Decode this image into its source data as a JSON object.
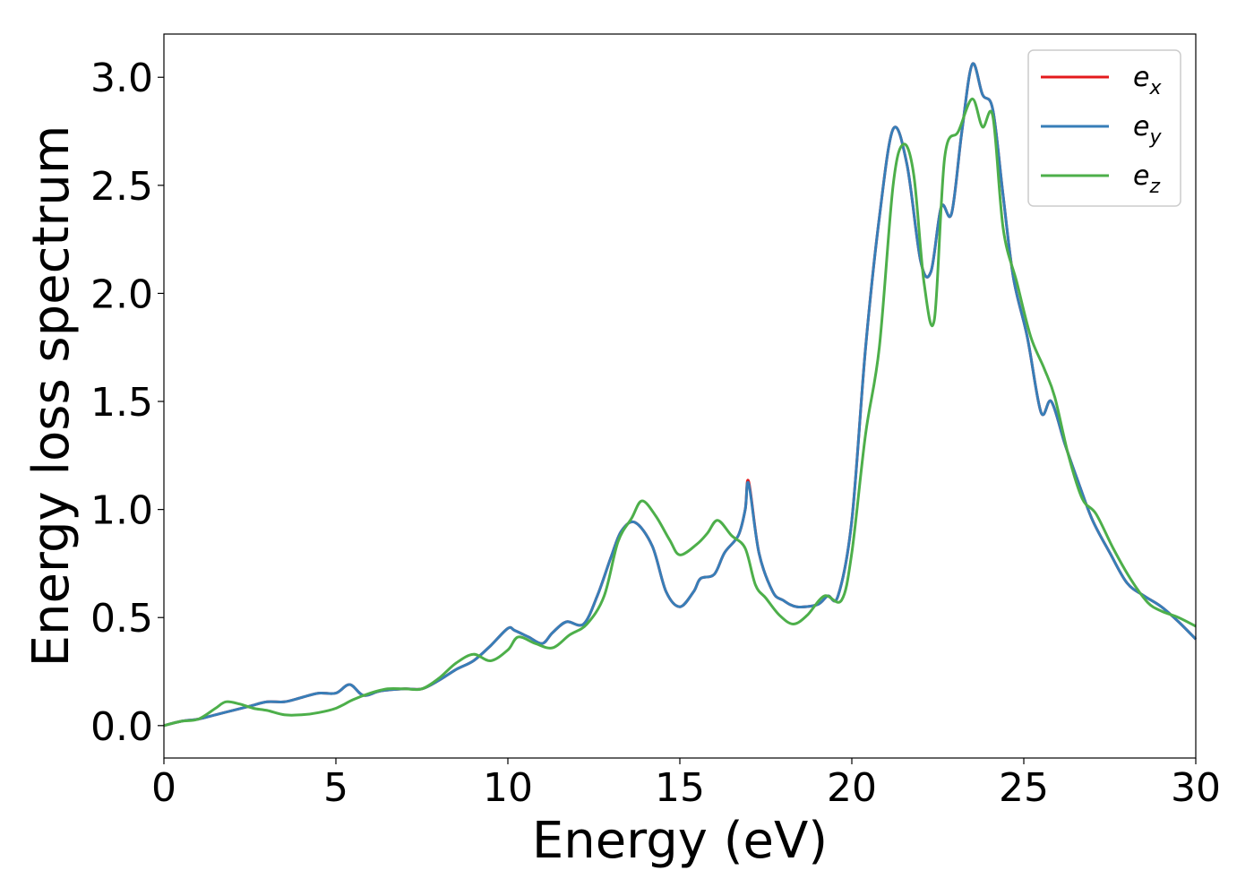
{
  "chart_data": {
    "type": "line",
    "title": "",
    "xlabel": "Energy (eV)",
    "ylabel": "Energy loss spectrum",
    "xlim": [
      0,
      30
    ],
    "ylim": [
      -0.15,
      3.2
    ],
    "xticks": [
      0,
      5,
      10,
      15,
      20,
      25,
      30
    ],
    "xtick_labels": [
      "0",
      "5",
      "10",
      "15",
      "20",
      "25",
      "30"
    ],
    "yticks": [
      0.0,
      0.5,
      1.0,
      1.5,
      2.0,
      2.5,
      3.0
    ],
    "ytick_labels": [
      "0.0",
      "0.5",
      "1.0",
      "1.5",
      "2.0",
      "2.5",
      "3.0"
    ],
    "grid": false,
    "legend_position": "top-right",
    "series": [
      {
        "name": "e_x",
        "label_base": "e",
        "label_sub": "x",
        "color": "#e41a1c",
        "x": [
          0,
          0.5,
          1,
          1.5,
          2,
          2.5,
          3,
          3.5,
          4,
          4.5,
          5,
          5.4,
          5.8,
          6.3,
          7,
          7.5,
          8,
          8.5,
          9,
          9.5,
          10,
          10.2,
          10.6,
          11,
          11.3,
          11.7,
          12.2,
          12.6,
          13,
          13.3,
          13.7,
          14.2,
          14.6,
          15,
          15.4,
          15.6,
          16,
          16.3,
          16.7,
          16.9,
          17,
          17.3,
          17.7,
          18,
          18.4,
          19,
          19.3,
          19.6,
          20,
          20.4,
          20.8,
          21.2,
          21.6,
          22,
          22.3,
          22.6,
          22.9,
          23.2,
          23.5,
          23.8,
          24.1,
          24.4,
          24.7,
          25.1,
          25.5,
          25.8,
          26.2,
          26.6,
          27,
          27.5,
          28,
          28.5,
          29,
          29.5,
          30
        ],
        "values": [
          0,
          0.02,
          0.03,
          0.05,
          0.07,
          0.09,
          0.11,
          0.11,
          0.13,
          0.15,
          0.15,
          0.19,
          0.14,
          0.16,
          0.17,
          0.17,
          0.21,
          0.26,
          0.3,
          0.37,
          0.45,
          0.44,
          0.41,
          0.38,
          0.43,
          0.48,
          0.47,
          0.6,
          0.78,
          0.9,
          0.94,
          0.83,
          0.62,
          0.55,
          0.62,
          0.68,
          0.7,
          0.8,
          0.88,
          1.0,
          1.13,
          0.8,
          0.62,
          0.58,
          0.55,
          0.56,
          0.6,
          0.6,
          0.95,
          1.75,
          2.35,
          2.76,
          2.6,
          2.15,
          2.1,
          2.4,
          2.37,
          2.75,
          3.06,
          2.92,
          2.85,
          2.45,
          2.07,
          1.8,
          1.45,
          1.5,
          1.3,
          1.12,
          0.95,
          0.8,
          0.66,
          0.6,
          0.55,
          0.48,
          0.4
        ]
      },
      {
        "name": "e_y",
        "label_base": "e",
        "label_sub": "y",
        "color": "#377eb8",
        "x": [
          0,
          0.5,
          1,
          1.5,
          2,
          2.5,
          3,
          3.5,
          4,
          4.5,
          5,
          5.4,
          5.8,
          6.3,
          7,
          7.5,
          8,
          8.5,
          9,
          9.5,
          10,
          10.2,
          10.6,
          11,
          11.3,
          11.7,
          12.2,
          12.6,
          13,
          13.3,
          13.7,
          14.2,
          14.6,
          15,
          15.4,
          15.6,
          16,
          16.3,
          16.7,
          16.9,
          17,
          17.3,
          17.7,
          18,
          18.4,
          19,
          19.3,
          19.6,
          20,
          20.4,
          20.8,
          21.2,
          21.6,
          22,
          22.3,
          22.6,
          22.9,
          23.2,
          23.5,
          23.8,
          24.1,
          24.4,
          24.7,
          25.1,
          25.5,
          25.8,
          26.2,
          26.6,
          27,
          27.5,
          28,
          28.5,
          29,
          29.5,
          30
        ],
        "values": [
          0,
          0.02,
          0.03,
          0.05,
          0.07,
          0.09,
          0.11,
          0.11,
          0.13,
          0.15,
          0.15,
          0.19,
          0.14,
          0.16,
          0.17,
          0.17,
          0.21,
          0.26,
          0.3,
          0.37,
          0.45,
          0.44,
          0.41,
          0.38,
          0.43,
          0.48,
          0.47,
          0.6,
          0.78,
          0.9,
          0.94,
          0.83,
          0.62,
          0.55,
          0.62,
          0.68,
          0.7,
          0.8,
          0.88,
          1.0,
          1.12,
          0.8,
          0.62,
          0.58,
          0.55,
          0.56,
          0.6,
          0.6,
          0.95,
          1.75,
          2.35,
          2.76,
          2.6,
          2.15,
          2.1,
          2.4,
          2.37,
          2.75,
          3.06,
          2.92,
          2.85,
          2.45,
          2.07,
          1.8,
          1.45,
          1.5,
          1.3,
          1.12,
          0.95,
          0.8,
          0.66,
          0.6,
          0.55,
          0.48,
          0.4
        ]
      },
      {
        "name": "e_z",
        "label_base": "e",
        "label_sub": "z",
        "color": "#4daf4a",
        "x": [
          0,
          0.5,
          1,
          1.5,
          1.8,
          2.2,
          2.6,
          3,
          3.5,
          4,
          4.5,
          5,
          5.5,
          6,
          6.5,
          7,
          7.5,
          8,
          8.5,
          9,
          9.5,
          10,
          10.3,
          10.8,
          11.3,
          11.8,
          12.3,
          12.8,
          13.2,
          13.6,
          13.9,
          14.3,
          14.7,
          15,
          15.5,
          15.8,
          16.1,
          16.5,
          16.9,
          17.2,
          17.5,
          17.9,
          18.3,
          18.7,
          19.2,
          19.7,
          20,
          20.4,
          20.8,
          21.2,
          21.5,
          21.8,
          22.1,
          22.4,
          22.7,
          23.1,
          23.5,
          23.8,
          24.1,
          24.4,
          24.8,
          25.2,
          25.6,
          25.9,
          26.3,
          26.7,
          27.1,
          27.6,
          28.1,
          28.6,
          29,
          29.5,
          30
        ],
        "values": [
          0,
          0.02,
          0.03,
          0.08,
          0.11,
          0.1,
          0.08,
          0.07,
          0.05,
          0.05,
          0.06,
          0.08,
          0.12,
          0.15,
          0.17,
          0.17,
          0.17,
          0.22,
          0.29,
          0.33,
          0.3,
          0.35,
          0.41,
          0.38,
          0.36,
          0.42,
          0.47,
          0.6,
          0.85,
          0.96,
          1.04,
          0.97,
          0.86,
          0.79,
          0.84,
          0.89,
          0.95,
          0.88,
          0.82,
          0.65,
          0.59,
          0.51,
          0.47,
          0.51,
          0.6,
          0.58,
          0.8,
          1.35,
          1.75,
          2.5,
          2.69,
          2.55,
          2.05,
          1.88,
          2.63,
          2.75,
          2.9,
          2.77,
          2.82,
          2.3,
          2.05,
          1.8,
          1.65,
          1.52,
          1.25,
          1.05,
          0.98,
          0.82,
          0.68,
          0.57,
          0.53,
          0.5,
          0.46
        ]
      }
    ]
  }
}
